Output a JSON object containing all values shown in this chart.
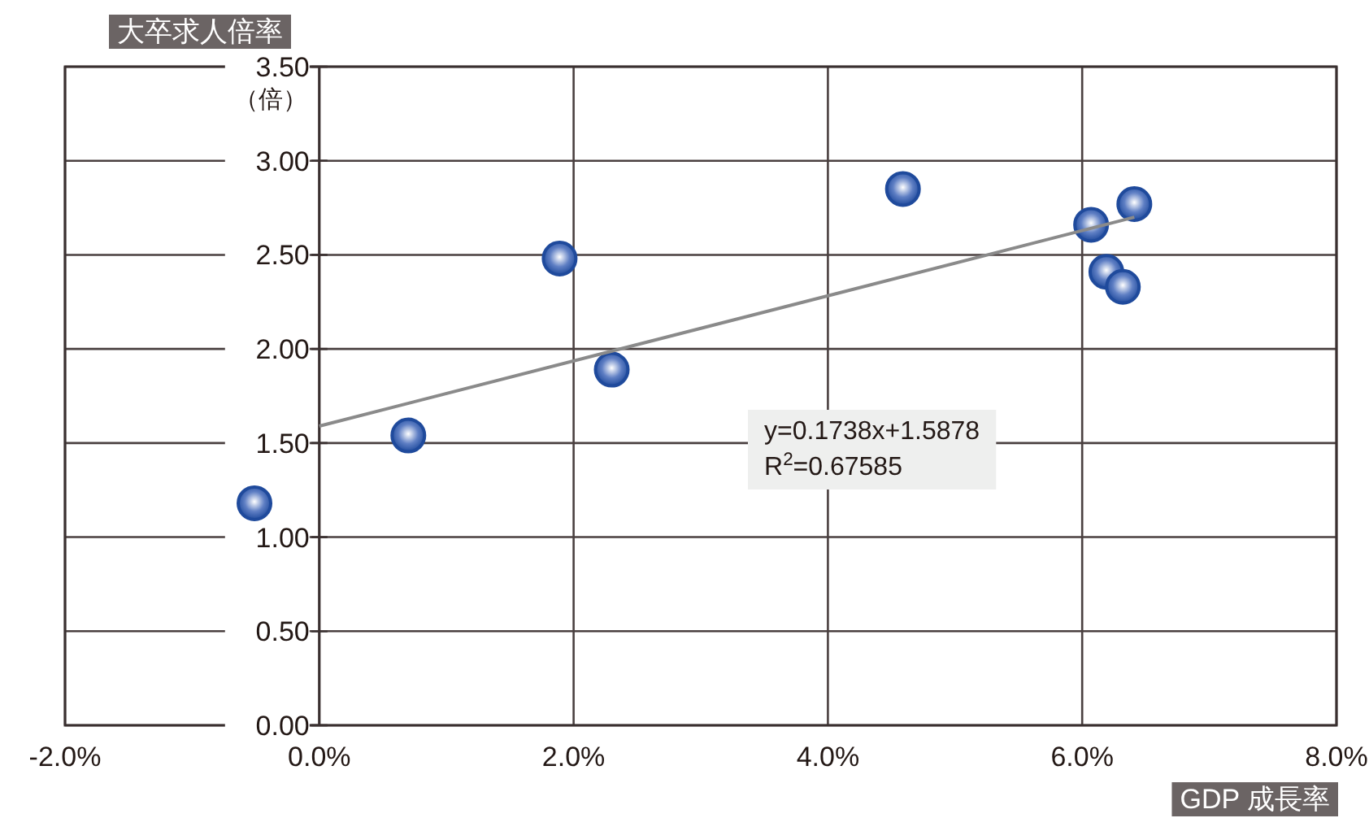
{
  "chart_data": {
    "type": "scatter",
    "ylabel": "大卒求人倍率",
    "xlabel": "GDP 成長率",
    "xlim": [
      -2,
      8
    ],
    "ylim": [
      0,
      3.5
    ],
    "xticks": [
      {
        "value": -2,
        "label": "-2.0%"
      },
      {
        "value": 0,
        "label": "0.0%"
      },
      {
        "value": 2,
        "label": "2.0%"
      },
      {
        "value": 4,
        "label": "4.0%"
      },
      {
        "value": 6,
        "label": "6.0%"
      },
      {
        "value": 8,
        "label": "8.0%"
      }
    ],
    "yticks": [
      {
        "value": 0,
        "label": "0.00"
      },
      {
        "value": 0.5,
        "label": "0.50"
      },
      {
        "value": 1,
        "label": "1.00"
      },
      {
        "value": 1.5,
        "label": "1.50"
      },
      {
        "value": 2,
        "label": "2.00"
      },
      {
        "value": 2.5,
        "label": "2.50"
      },
      {
        "value": 3,
        "label": "3.00"
      },
      {
        "value": 3.5,
        "label": "3.50"
      }
    ],
    "grid": true,
    "series": [
      {
        "marker": "circle",
        "color": "#1f4a9c",
        "x": [
          -0.51,
          0.7,
          1.89,
          2.3,
          4.59,
          6.07,
          6.41,
          6.19,
          6.32
        ],
        "values": [
          1.18,
          1.54,
          2.48,
          1.89,
          2.85,
          2.66,
          2.77,
          2.41,
          2.33
        ]
      },
      {
        "type": "line",
        "color": "#8a8a8a",
        "line_style": "solid",
        "x": [
          0,
          6.41
        ],
        "values": [
          1.59,
          2.7
        ]
      }
    ],
    "annotations": [
      "（倍）",
      "y=0.1738x+1.5878",
      "R$^{2}$=0.67585"
    ]
  }
}
